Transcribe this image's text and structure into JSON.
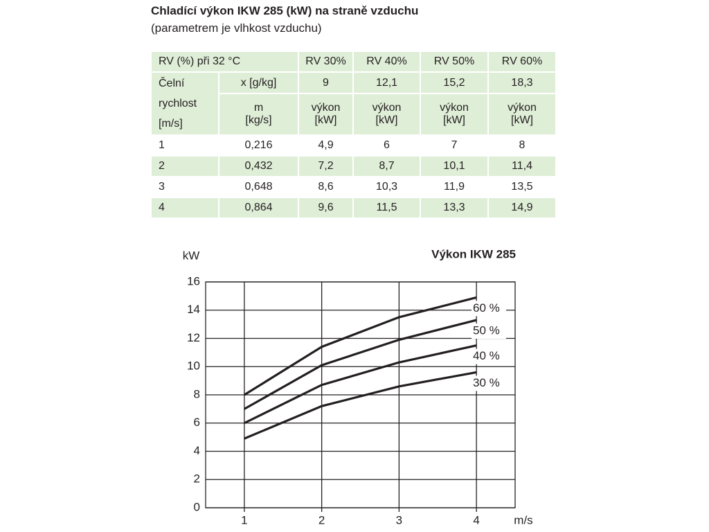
{
  "header": {
    "title": "Chladící výkon IKW 285 (kW) na straně vzduchu",
    "subtitle": "(parametrem je vlhkost vzduchu)"
  },
  "table": {
    "header": [
      "RV (%) při 32 °C",
      "RV 30%",
      "RV 40%",
      "RV 50%",
      "RV 60%"
    ],
    "row_label": [
      "Čelní",
      "rychlost",
      "[m/s]"
    ],
    "x_row": [
      "x [g/kg]",
      "9",
      "12,1",
      "15,2",
      "18,3"
    ],
    "unit_row": [
      [
        "m",
        "[kg/s]"
      ],
      [
        "výkon",
        "[kW]"
      ],
      [
        "výkon",
        "[kW]"
      ],
      [
        "výkon",
        "[kW]"
      ],
      [
        "výkon",
        "[kW]"
      ]
    ],
    "rows": [
      [
        "1",
        "0,216",
        "4,9",
        "6",
        "7",
        "8"
      ],
      [
        "2",
        "0,432",
        "7,2",
        "8,7",
        "10,1",
        "11,4"
      ],
      [
        "3",
        "0,648",
        "8,6",
        "10,3",
        "11,9",
        "13,5"
      ],
      [
        "4",
        "0,864",
        "9,6",
        "11,5",
        "13,3",
        "14,9"
      ]
    ]
  },
  "chart_data": {
    "type": "line",
    "title": "Výkon IKW 285",
    "ylabel": "kW",
    "xlabel": "m/s",
    "x": [
      1,
      2,
      3,
      4
    ],
    "xlim": [
      0.5,
      4.5
    ],
    "xticks": [
      1,
      2,
      3,
      4
    ],
    "ylim": [
      0,
      16
    ],
    "yticks": [
      0,
      2,
      4,
      6,
      8,
      10,
      12,
      14,
      16
    ],
    "grid": true,
    "series": [
      {
        "name": "30 %",
        "color": "#231f20",
        "values": [
          4.9,
          7.2,
          8.6,
          9.6
        ]
      },
      {
        "name": "40 %",
        "color": "#231f20",
        "values": [
          6,
          8.7,
          10.3,
          11.5
        ]
      },
      {
        "name": "50 %",
        "color": "#231f20",
        "values": [
          7,
          10.1,
          11.9,
          13.3
        ]
      },
      {
        "name": "60 %",
        "color": "#231f20",
        "values": [
          8,
          11.4,
          13.5,
          14.9
        ]
      }
    ]
  }
}
